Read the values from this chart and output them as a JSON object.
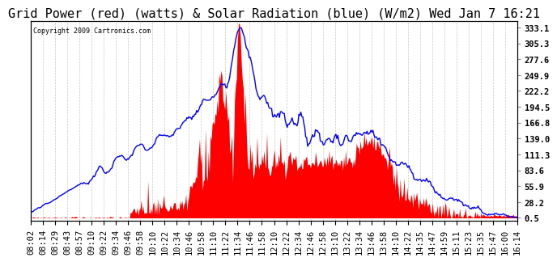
{
  "title": "Grid Power (red) (watts) & Solar Radiation (blue) (W/m2) Wed Jan 7 16:21",
  "copyright": "Copyright 2009 Cartronics.com",
  "yticks": [
    0.5,
    28.2,
    55.9,
    83.6,
    111.3,
    139.0,
    166.8,
    194.5,
    222.2,
    249.9,
    277.6,
    305.3,
    333.1
  ],
  "ymax": 345,
  "ymin": 0.5,
  "xtick_labels": [
    "08:02",
    "08:14",
    "08:29",
    "08:43",
    "08:57",
    "09:10",
    "09:22",
    "09:34",
    "09:46",
    "09:58",
    "10:10",
    "10:22",
    "10:34",
    "10:46",
    "10:58",
    "11:10",
    "11:22",
    "11:34",
    "11:46",
    "11:58",
    "12:10",
    "12:22",
    "12:34",
    "12:46",
    "12:58",
    "13:10",
    "13:22",
    "13:34",
    "13:46",
    "13:58",
    "14:10",
    "14:22",
    "14:35",
    "14:47",
    "14:59",
    "15:11",
    "15:23",
    "15:35",
    "15:47",
    "16:00",
    "16:14"
  ],
  "bg_color": "#ffffff",
  "grid_color": "#c8c8c8",
  "red_color": "#ff0000",
  "blue_color": "#0000ff",
  "title_fontsize": 11,
  "tick_fontsize": 7.5
}
